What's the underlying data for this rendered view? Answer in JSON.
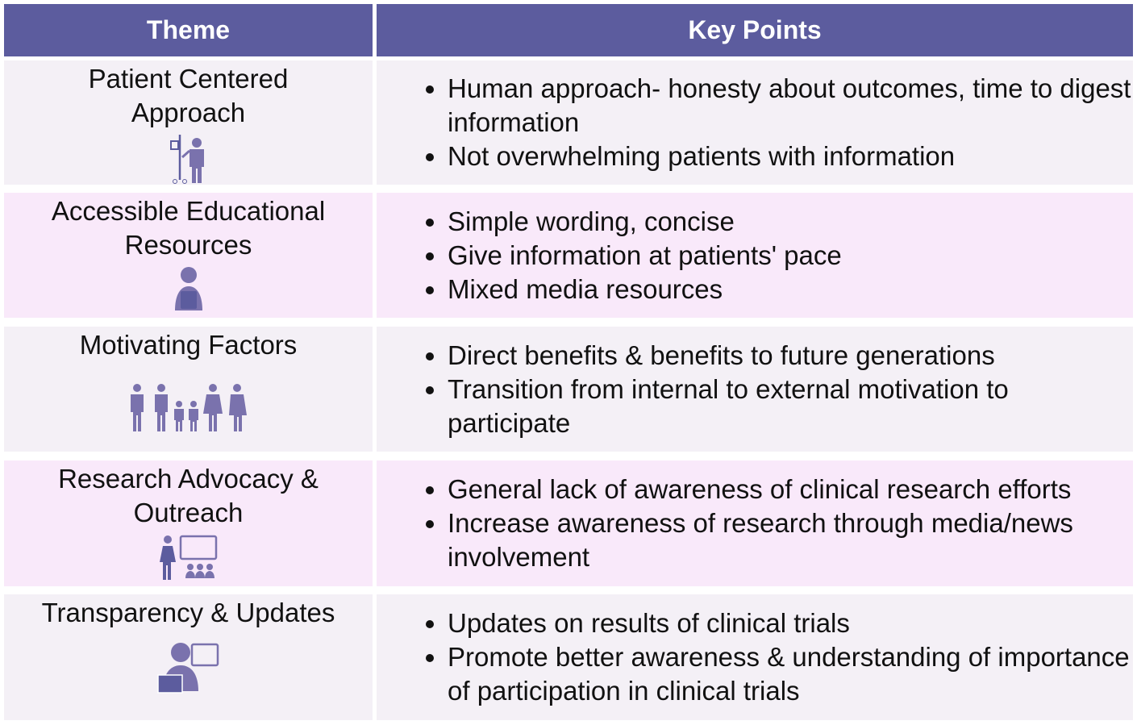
{
  "header": {
    "theme": "Theme",
    "key_points": "Key Points"
  },
  "colors": {
    "header_bg": "#5c5c9e",
    "row_odd": "#f4f0f6",
    "row_even": "#f9e9fa",
    "icon": "#7a72ad"
  },
  "rows": [
    {
      "theme": "Patient Centered Approach",
      "icon": "patient-iv-pole-icon",
      "points": [
        "Human approach- honesty about outcomes, time to digest information",
        "Not overwhelming patients with information"
      ]
    },
    {
      "theme": "Accessible Educational Resources",
      "icon": "person-reading-tablet-icon",
      "points": [
        "Simple wording, concise",
        "Give information at patients' pace",
        "Mixed media resources"
      ]
    },
    {
      "theme": "Motivating Factors",
      "icon": "family-generations-icon",
      "points": [
        "Direct benefits & benefits to future generations",
        "Transition from internal to external motivation to participate"
      ]
    },
    {
      "theme": "Research Advocacy & Outreach",
      "icon": "presenter-audience-icon",
      "points": [
        "General lack of awareness of clinical research efforts",
        "Increase awareness of research through media/news involvement"
      ]
    },
    {
      "theme": "Transparency & Updates",
      "icon": "person-reading-board-icon",
      "points": [
        "Updates on results of clinical trials",
        "Promote better awareness & understanding of importance of participation in clinical trials"
      ]
    }
  ]
}
